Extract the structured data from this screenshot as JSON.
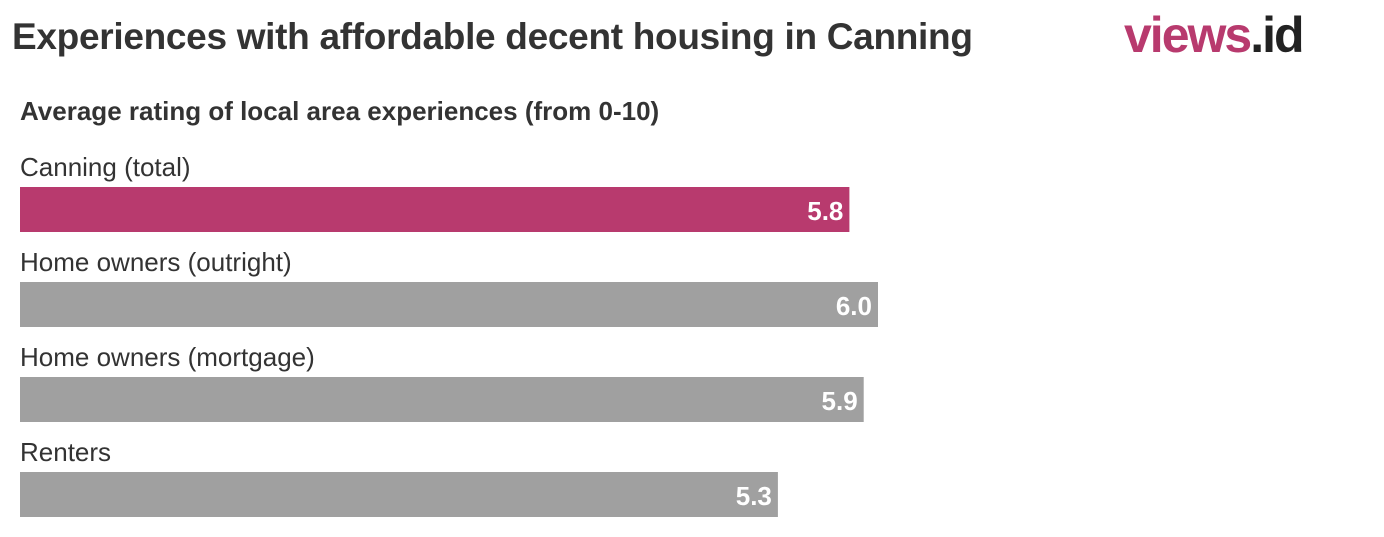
{
  "header": {
    "title": "Experiences with affordable decent housing in Canning",
    "logo_brand": "views",
    "logo_dot": ".",
    "logo_tld": "id"
  },
  "chart_data": {
    "type": "bar",
    "orientation": "horizontal",
    "title": "Experiences with affordable decent housing in Canning",
    "subtitle": "Average rating of local area experiences (from 0-10)",
    "categories": [
      "Canning (total)",
      "Home owners (outright)",
      "Home owners (mortgage)",
      "Renters"
    ],
    "values": [
      5.8,
      6.0,
      5.9,
      5.3
    ],
    "value_labels": [
      "5.8",
      "6.0",
      "5.9",
      "5.3"
    ],
    "xlim": [
      0,
      10
    ],
    "highlight_index": 0,
    "colors": {
      "highlight": "#b83a6e",
      "default": "#a0a0a0",
      "value_text": "#ffffff"
    }
  }
}
